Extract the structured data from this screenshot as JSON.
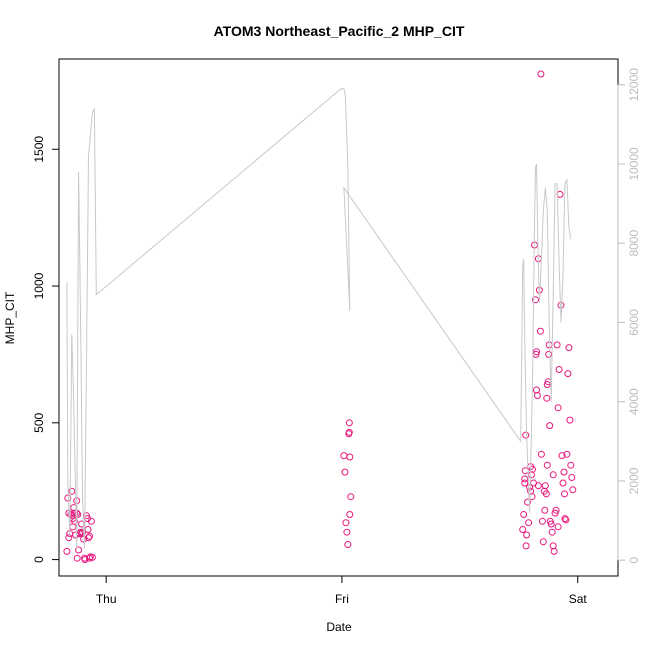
{
  "chart_data": {
    "type": "scatter",
    "title": "ATOM3 Northeast_Pacific_2 MHP_CIT",
    "xlabel": "Date",
    "ylabel": "MHP_CIT",
    "x_ticks": [
      {
        "label": "Thu",
        "value": 0
      },
      {
        "label": "Fri",
        "value": 24
      },
      {
        "label": "Sat",
        "value": 48
      }
    ],
    "xlim": [
      -4.8,
      52.1
    ],
    "ylim": [
      -60,
      1830
    ],
    "y_ticks": [
      0,
      500,
      1000,
      1500
    ],
    "y2lim": [
      -400,
      12650
    ],
    "y2_ticks": [
      0,
      2000,
      4000,
      6000,
      8000,
      10000,
      12000
    ],
    "colors": {
      "points": "#e8187e",
      "line": "#c8c8c8"
    },
    "series": [
      {
        "axis": "left",
        "kind": "points",
        "points": [
          [
            -4.0,
            30
          ],
          [
            -3.9,
            225
          ],
          [
            -3.8,
            170
          ],
          [
            -3.8,
            80
          ],
          [
            -3.7,
            95
          ],
          [
            -3.6,
            165
          ],
          [
            -3.5,
            250
          ],
          [
            -3.4,
            150
          ],
          [
            -3.4,
            120
          ],
          [
            -3.3,
            190
          ],
          [
            -3.2,
            140
          ],
          [
            -3.1,
            90
          ],
          [
            -3.0,
            215
          ],
          [
            -2.95,
            5
          ],
          [
            -2.9,
            165
          ],
          [
            -2.8,
            35
          ],
          [
            -2.7,
            95
          ],
          [
            -2.6,
            100
          ],
          [
            -2.5,
            130
          ],
          [
            -2.4,
            100
          ],
          [
            -2.3,
            75
          ],
          [
            -2.2,
            5
          ],
          [
            -2.15,
            0
          ],
          [
            -2.0,
            160
          ],
          [
            -1.9,
            150
          ],
          [
            -1.85,
            110
          ],
          [
            -1.8,
            80
          ],
          [
            -1.7,
            5
          ],
          [
            -1.6,
            10
          ],
          [
            -1.5,
            140
          ],
          [
            -1.4,
            8
          ],
          [
            -3.0,
            170
          ],
          [
            -3.2,
            170
          ],
          [
            -2.5,
            95
          ],
          [
            -1.7,
            85
          ],
          [
            -3.5,
            160
          ]
        ]
      },
      {
        "axis": "left",
        "kind": "points",
        "points": [
          [
            24.2,
            380
          ],
          [
            24.3,
            320
          ],
          [
            24.4,
            135
          ],
          [
            24.5,
            100
          ],
          [
            24.6,
            55
          ],
          [
            24.7,
            460
          ],
          [
            24.75,
            500
          ],
          [
            24.8,
            165
          ],
          [
            24.8,
            375
          ],
          [
            24.9,
            230
          ],
          [
            24.75,
            465
          ]
        ]
      },
      {
        "axis": "left",
        "kind": "points",
        "points": [
          [
            42.4,
            110
          ],
          [
            42.5,
            165
          ],
          [
            42.6,
            295
          ],
          [
            42.65,
            325
          ],
          [
            42.7,
            455
          ],
          [
            42.75,
            50
          ],
          [
            42.8,
            90
          ],
          [
            42.9,
            210
          ],
          [
            43.0,
            135
          ],
          [
            43.1,
            265
          ],
          [
            43.2,
            340
          ],
          [
            43.3,
            310
          ],
          [
            43.35,
            230
          ],
          [
            43.4,
            330
          ],
          [
            43.5,
            280
          ],
          [
            43.6,
            1150
          ],
          [
            43.7,
            950
          ],
          [
            43.75,
            750
          ],
          [
            43.8,
            760
          ],
          [
            43.9,
            600
          ],
          [
            44.0,
            1100
          ],
          [
            44.1,
            985
          ],
          [
            44.2,
            835
          ],
          [
            44.3,
            385
          ],
          [
            44.4,
            140
          ],
          [
            44.5,
            65
          ],
          [
            44.6,
            250
          ],
          [
            44.65,
            180
          ],
          [
            44.7,
            270
          ],
          [
            44.8,
            240
          ],
          [
            44.85,
            590
          ],
          [
            44.9,
            640
          ],
          [
            45.0,
            650
          ],
          [
            45.05,
            750
          ],
          [
            45.1,
            785
          ],
          [
            45.15,
            490
          ],
          [
            45.2,
            140
          ],
          [
            45.3,
            130
          ],
          [
            45.4,
            100
          ],
          [
            45.5,
            50
          ],
          [
            45.6,
            30
          ],
          [
            45.7,
            170
          ],
          [
            45.8,
            180
          ],
          [
            45.9,
            785
          ],
          [
            46.0,
            555
          ],
          [
            46.1,
            695
          ],
          [
            46.2,
            1335
          ],
          [
            46.3,
            930
          ],
          [
            46.4,
            380
          ],
          [
            46.5,
            280
          ],
          [
            46.6,
            320
          ],
          [
            46.65,
            240
          ],
          [
            46.7,
            150
          ],
          [
            46.8,
            145
          ],
          [
            46.9,
            385
          ],
          [
            47.0,
            680
          ],
          [
            47.1,
            775
          ],
          [
            47.2,
            510
          ],
          [
            47.3,
            345
          ],
          [
            47.4,
            300
          ],
          [
            47.5,
            255
          ],
          [
            44.25,
            1775
          ],
          [
            44.0,
            270
          ],
          [
            45.5,
            310
          ],
          [
            43.2,
            250
          ],
          [
            44.9,
            345
          ],
          [
            46.0,
            120
          ],
          [
            42.6,
            280
          ],
          [
            43.8,
            620
          ]
        ]
      },
      {
        "axis": "right",
        "kind": "line",
        "points": [
          [
            -4.0,
            7000
          ],
          [
            -3.9,
            2000
          ],
          [
            -3.7,
            600
          ],
          [
            -3.5,
            5700
          ],
          [
            -3.3,
            4000
          ],
          [
            -3.0,
            300
          ],
          [
            -2.8,
            9800
          ],
          [
            -2.6,
            6000
          ],
          [
            -2.4,
            1500
          ],
          [
            -2.2,
            300
          ],
          [
            -2.0,
            5000
          ],
          [
            -1.8,
            10200
          ],
          [
            -1.4,
            11300
          ],
          [
            -1.2,
            11400
          ],
          [
            -1.0,
            6700
          ],
          [
            23.9,
            11900
          ],
          [
            24.2,
            11900
          ],
          [
            24.35,
            11700
          ],
          [
            24.6,
            10000
          ],
          [
            24.8,
            6300
          ],
          [
            24.2,
            9400
          ],
          [
            42.2,
            3000
          ],
          [
            42.4,
            7400
          ],
          [
            42.5,
            7600
          ],
          [
            42.6,
            5600
          ],
          [
            42.8,
            3200
          ],
          [
            43.1,
            1200
          ],
          [
            43.4,
            4500
          ],
          [
            43.6,
            8500
          ],
          [
            43.7,
            9900
          ],
          [
            43.8,
            10000
          ],
          [
            43.95,
            8000
          ],
          [
            44.1,
            6500
          ],
          [
            44.3,
            7600
          ],
          [
            44.5,
            8800
          ],
          [
            44.7,
            9400
          ],
          [
            44.9,
            8800
          ],
          [
            45.1,
            6000
          ],
          [
            45.3,
            4000
          ],
          [
            45.5,
            6700
          ],
          [
            45.7,
            9500
          ],
          [
            45.9,
            9500
          ],
          [
            46.1,
            7500
          ],
          [
            46.3,
            6000
          ],
          [
            46.5,
            7200
          ],
          [
            46.7,
            9500
          ],
          [
            46.9,
            9600
          ],
          [
            47.1,
            8400
          ],
          [
            47.3,
            8100
          ]
        ]
      }
    ]
  }
}
